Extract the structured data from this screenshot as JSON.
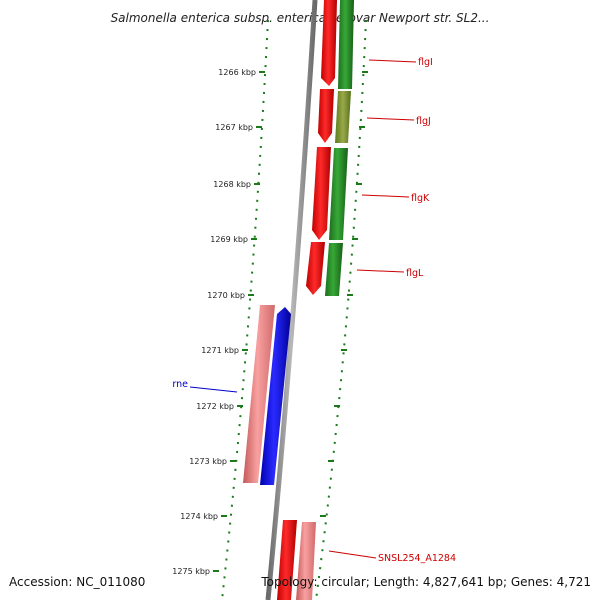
{
  "title": "Salmonella enterica subsp. enterica serovar Newport str. SL2...",
  "accession": "Accession: NC_011080",
  "topology": "Topology: circular; Length: 4,827,641 bp; Genes: 4,721",
  "colors": {
    "plus_strand_gene": "#228b22",
    "minus_strand_gene": "#ee0000",
    "rna_gene": "#0000ee",
    "pseudo_gene": "#f08080",
    "backbone": "#888888",
    "tick": "#1a7a1a",
    "label_red": "#cc0000",
    "label_blue": "#0000cc"
  },
  "ticks": [
    {
      "label": "1266 kbp"
    },
    {
      "label": "1267 kbp"
    },
    {
      "label": "1268 kbp"
    },
    {
      "label": "1269 kbp"
    },
    {
      "label": "1270 kbp"
    },
    {
      "label": "1271 kbp"
    },
    {
      "label": "1272 kbp"
    },
    {
      "label": "1273 kbp"
    },
    {
      "label": "1274 kbp"
    },
    {
      "label": "1275 kbp"
    }
  ],
  "gene_labels": [
    {
      "text": "flgI"
    },
    {
      "text": "flgJ"
    },
    {
      "text": "flgK"
    },
    {
      "text": "flgL"
    },
    {
      "text": "rne"
    },
    {
      "text": "SNSL254_A1284"
    }
  ]
}
